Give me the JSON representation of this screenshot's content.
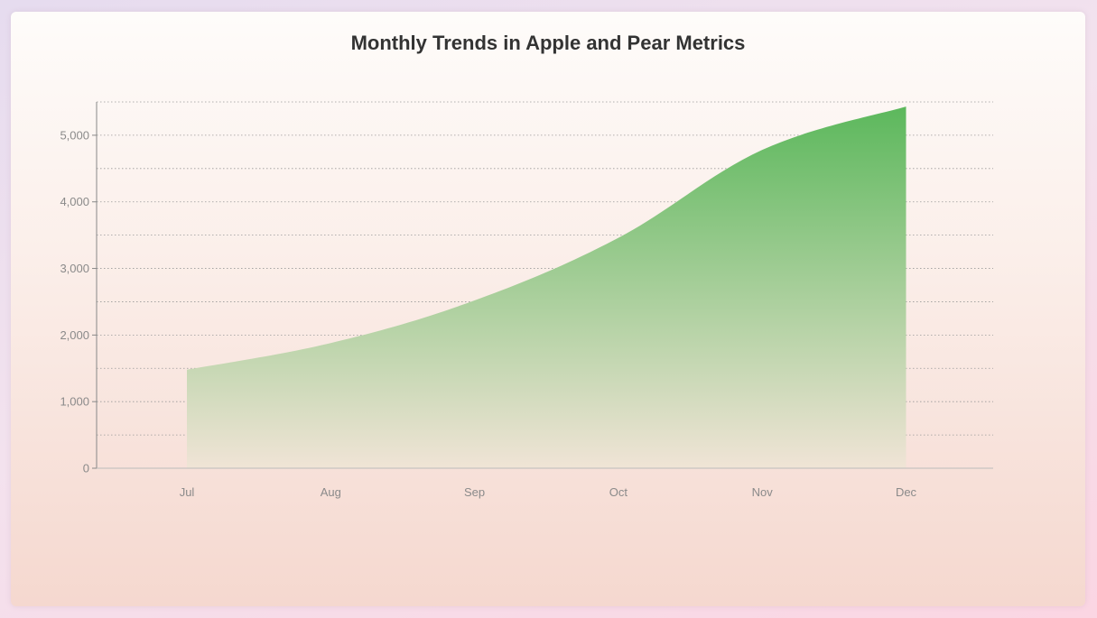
{
  "chart_data": {
    "type": "area",
    "title": "Monthly Trends in Apple and Pear Metrics",
    "xlabel": "",
    "ylabel": "",
    "categories": [
      "Jul",
      "Aug",
      "Sep",
      "Oct",
      "Nov",
      "Dec"
    ],
    "series": [
      {
        "values": [
          1480,
          1880,
          2520,
          3460,
          4780,
          5430
        ]
      }
    ],
    "ylim": [
      0,
      5500
    ],
    "yticks": [
      0,
      1000,
      2000,
      3000,
      4000,
      5000
    ],
    "ytick_labels": [
      "0",
      "1,000",
      "2,000",
      "3,000",
      "4,000",
      "5,000"
    ],
    "grid": true,
    "legend": "none",
    "colors": {
      "fill_top": "#5cb85c",
      "fill_bottom": "#f0e4d6",
      "axis": "#888888",
      "grid": "#999999"
    }
  }
}
